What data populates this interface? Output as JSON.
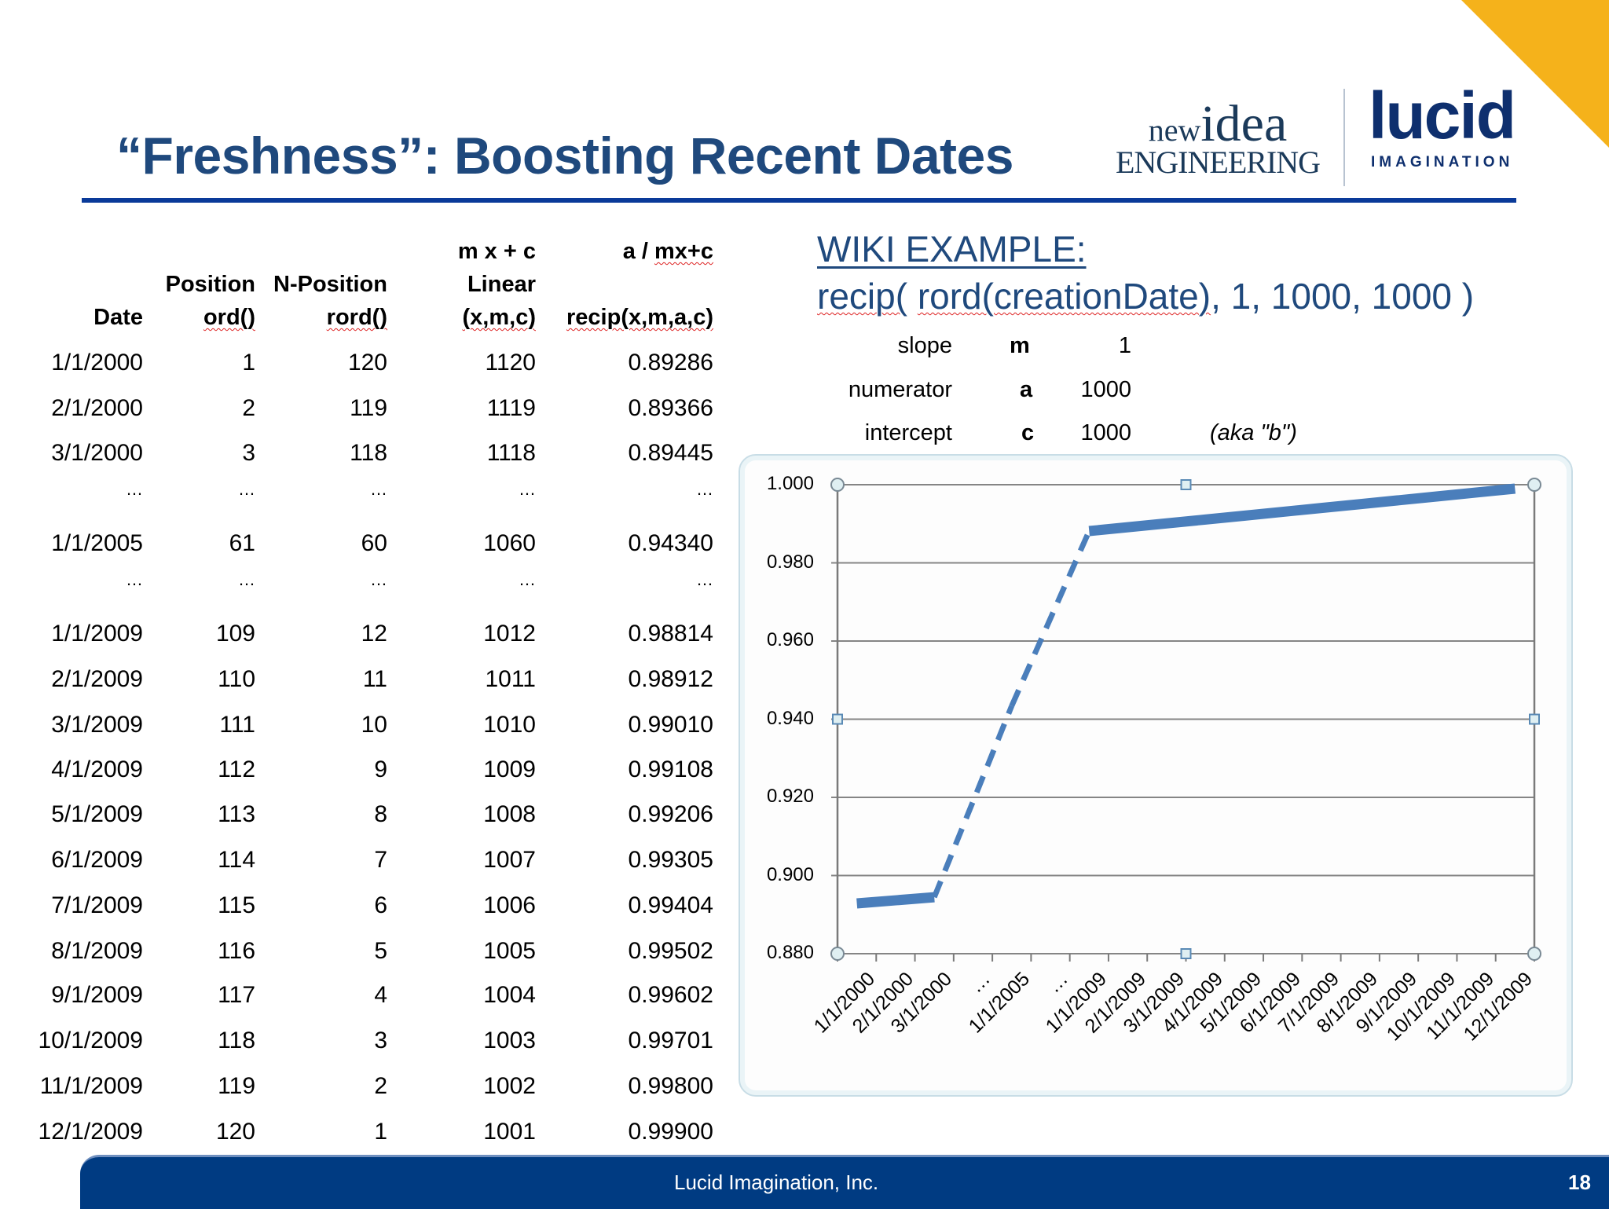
{
  "slide": {
    "title": "“Freshness”: Boosting Recent Dates",
    "logos": {
      "nie_line1_small": "new",
      "nie_line1_big": "idea",
      "nie_line2": "ENGINEERING",
      "lucid": "lucid",
      "lucid_sub": "IMAGINATION"
    },
    "accent_color": "#f5b21b",
    "title_color": "#1f497d",
    "footer": {
      "company": "Lucid Imagination, Inc.",
      "page": "18",
      "color": "#003b82"
    }
  },
  "table": {
    "headers": {
      "date": [
        "",
        "",
        "Date"
      ],
      "position": [
        "",
        "Position",
        "ord()"
      ],
      "npos": [
        "",
        "N-Position",
        "rord()"
      ],
      "linear": [
        "m x + c",
        "Linear",
        "(x,m,c)"
      ],
      "recip": [
        "a / mx+c",
        "",
        "recip(x,m,a,c)"
      ]
    },
    "rows": [
      [
        "1/1/2000",
        "1",
        "120",
        "1120",
        "0.89286"
      ],
      [
        "2/1/2000",
        "2",
        "119",
        "1119",
        "0.89366"
      ],
      [
        "3/1/2000",
        "3",
        "118",
        "1118",
        "0.89445"
      ],
      [
        "...",
        "...",
        "...",
        "...",
        "..."
      ],
      [
        "1/1/2005",
        "61",
        "60",
        "1060",
        "0.94340"
      ],
      [
        "...",
        "...",
        "...",
        "...",
        "..."
      ],
      [
        "1/1/2009",
        "109",
        "12",
        "1012",
        "0.98814"
      ],
      [
        "2/1/2009",
        "110",
        "11",
        "1011",
        "0.98912"
      ],
      [
        "3/1/2009",
        "111",
        "10",
        "1010",
        "0.99010"
      ],
      [
        "4/1/2009",
        "112",
        "9",
        "1009",
        "0.99108"
      ],
      [
        "5/1/2009",
        "113",
        "8",
        "1008",
        "0.99206"
      ],
      [
        "6/1/2009",
        "114",
        "7",
        "1007",
        "0.99305"
      ],
      [
        "7/1/2009",
        "115",
        "6",
        "1006",
        "0.99404"
      ],
      [
        "8/1/2009",
        "116",
        "5",
        "1005",
        "0.99502"
      ],
      [
        "9/1/2009",
        "117",
        "4",
        "1004",
        "0.99602"
      ],
      [
        "10/1/2009",
        "118",
        "3",
        "1003",
        "0.99701"
      ],
      [
        "11/1/2009",
        "119",
        "2",
        "1002",
        "0.99800"
      ],
      [
        "12/1/2009",
        "120",
        "1",
        "1001",
        "0.99900"
      ]
    ]
  },
  "wiki": {
    "heading": "WIKI EXAMPLE:",
    "formula_parts": [
      "recip(",
      " ",
      "rord(creationDate)",
      ", 1, 1000, 1000 )"
    ],
    "params": [
      {
        "label": "slope",
        "symbol": "m",
        "value": "1",
        "note": ""
      },
      {
        "label": "numerator",
        "symbol": "a",
        "value": "1000",
        "note": ""
      },
      {
        "label": "intercept",
        "symbol": "c",
        "value": "1000",
        "note": "(aka \"b\")"
      }
    ]
  },
  "chart_data": {
    "type": "line",
    "title": "",
    "xlabel": "",
    "ylabel": "",
    "categories": [
      "1/1/2000",
      "2/1/2000",
      "3/1/2000",
      "...",
      "1/1/2005",
      "...",
      "1/1/2009",
      "2/1/2009",
      "3/1/2009",
      "4/1/2009",
      "5/1/2009",
      "6/1/2009",
      "7/1/2009",
      "8/1/2009",
      "9/1/2009",
      "10/1/2009",
      "11/1/2009",
      "12/1/2009"
    ],
    "series": [
      {
        "name": "recip(x,m,a,c)",
        "values": [
          0.89286,
          0.89366,
          0.89445,
          null,
          0.9434,
          null,
          0.98814,
          0.98912,
          0.9901,
          0.99108,
          0.99206,
          0.99305,
          0.99404,
          0.99502,
          0.99602,
          0.99701,
          0.998,
          0.999
        ],
        "color": "#4a7ebb",
        "gap_style": "dashed"
      }
    ],
    "y_ticks": [
      "1.000",
      "0.980",
      "0.960",
      "0.940",
      "0.920",
      "0.900",
      "0.880"
    ],
    "ylim": [
      0.88,
      1.0
    ],
    "grid": true,
    "legend": "none"
  }
}
